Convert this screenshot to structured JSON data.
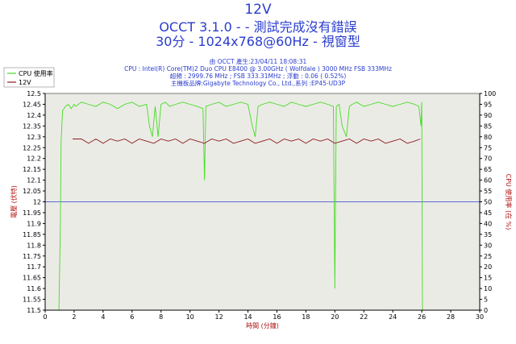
{
  "header": {
    "title": "12V",
    "subtitle": "OCCT 3.1.0 -  - 測試完成沒有錯誤",
    "mode": "30分 - 1024x768@60Hz - 視窗型"
  },
  "info": {
    "line1": "由 OCCT 產生:23/04/11 18:08:31",
    "line2": "CPU : Intel(R) Core(TM)2 Duo CPU E8400 @ 3.00GHz ( Wolfdale ) 3000 MHz FSB 333MHz",
    "line3": "超頻 : 2999.76 MHz ; FSB 333.31MHz ; 浮動 : 0.06 ( 0.52%)",
    "line4": "主機板品牌:Gigabyte Technology Co., Ltd.,系列 :EP45-UD3P"
  },
  "colors": {
    "background": "#ffffff",
    "plot_background": "#ebebe6",
    "cpu_line": "#44dd22",
    "voltage_line": "#8b1a1a",
    "ref_line": "#2a3ccf",
    "title_text": "#2a3ccf",
    "axis_label_text": "#b01010"
  },
  "chart_data": {
    "type": "line",
    "title": "12V",
    "xlabel": "時間 (分鐘)",
    "ylabel": "電壓 (伏特)",
    "y2label": "CPU 使用率 (在 %)",
    "xlim": [
      0,
      30
    ],
    "ylim": [
      11.5,
      12.5
    ],
    "y2lim": [
      0,
      100
    ],
    "x_ticks": [
      0,
      2,
      4,
      6,
      8,
      10,
      12,
      14,
      16,
      18,
      20,
      22,
      24,
      26,
      28,
      30
    ],
    "y_ticks": [
      11.5,
      11.55,
      11.6,
      11.65,
      11.7,
      11.75,
      11.8,
      11.85,
      11.9,
      11.95,
      12,
      12.05,
      12.1,
      12.15,
      12.2,
      12.25,
      12.3,
      12.35,
      12.4,
      12.45,
      12.5
    ],
    "y2_ticks": [
      0,
      5,
      10,
      15,
      20,
      25,
      30,
      35,
      40,
      45,
      50,
      55,
      60,
      65,
      70,
      75,
      80,
      85,
      90,
      95,
      100
    ],
    "reference_line": 12.0,
    "legend_position": "top-left",
    "grid": false,
    "series": [
      {
        "name": "CPU 使用率",
        "axis": "right",
        "x": [
          0.95,
          1.05,
          1.1,
          1.2,
          1.4,
          1.6,
          1.8,
          2.0,
          2.1,
          2.5,
          3.0,
          3.5,
          4.0,
          4.5,
          5.0,
          5.5,
          6.0,
          6.5,
          7.0,
          7.2,
          7.4,
          7.6,
          7.8,
          8.0,
          8.3,
          8.6,
          9.0,
          9.5,
          10.0,
          10.5,
          10.9,
          11.0,
          11.1,
          11.5,
          12.0,
          12.5,
          13.0,
          13.5,
          14.0,
          14.3,
          14.5,
          14.7,
          15.0,
          15.5,
          16.0,
          16.5,
          17.0,
          17.5,
          18.0,
          18.5,
          19.0,
          19.5,
          19.9,
          20.0,
          20.1,
          20.3,
          20.5,
          20.8,
          21.0,
          21.2,
          21.5,
          22.0,
          22.5,
          23.0,
          23.5,
          24.0,
          24.5,
          25.0,
          25.5,
          25.8,
          25.95,
          26.0,
          26.05
        ],
        "values": [
          0,
          40,
          78,
          92,
          94,
          95,
          93,
          95,
          94,
          96,
          95,
          94,
          96,
          95,
          93,
          95,
          96,
          94,
          95,
          85,
          80,
          94,
          80,
          95,
          96,
          94,
          95,
          96,
          95,
          94,
          93,
          60,
          94,
          95,
          96,
          94,
          95,
          96,
          95,
          85,
          80,
          94,
          95,
          96,
          95,
          94,
          96,
          95,
          94,
          95,
          96,
          95,
          94,
          10,
          94,
          95,
          85,
          80,
          94,
          95,
          96,
          94,
          95,
          96,
          95,
          94,
          95,
          96,
          95,
          94,
          85,
          96,
          0
        ]
      },
      {
        "name": "12V",
        "axis": "left",
        "x": [
          1.9,
          2.5,
          3.0,
          3.5,
          4.0,
          4.5,
          5.0,
          5.5,
          6.0,
          6.5,
          7.0,
          7.5,
          8.0,
          8.5,
          9.0,
          9.5,
          10.0,
          10.5,
          11.0,
          11.5,
          12.0,
          12.5,
          13.0,
          13.5,
          14.0,
          14.5,
          15.0,
          15.5,
          16.0,
          16.5,
          17.0,
          17.5,
          18.0,
          18.5,
          19.0,
          19.5,
          20.0,
          20.5,
          21.0,
          21.5,
          22.0,
          22.5,
          23.0,
          23.5,
          24.0,
          24.5,
          25.0,
          25.5,
          25.9
        ],
        "values": [
          12.29,
          12.29,
          12.27,
          12.29,
          12.27,
          12.29,
          12.28,
          12.29,
          12.27,
          12.29,
          12.28,
          12.27,
          12.29,
          12.28,
          12.29,
          12.27,
          12.29,
          12.28,
          12.27,
          12.29,
          12.28,
          12.29,
          12.27,
          12.28,
          12.29,
          12.27,
          12.28,
          12.29,
          12.27,
          12.29,
          12.28,
          12.29,
          12.27,
          12.29,
          12.28,
          12.29,
          12.27,
          12.28,
          12.29,
          12.27,
          12.29,
          12.28,
          12.29,
          12.27,
          12.28,
          12.29,
          12.27,
          12.28,
          12.29
        ]
      }
    ]
  }
}
